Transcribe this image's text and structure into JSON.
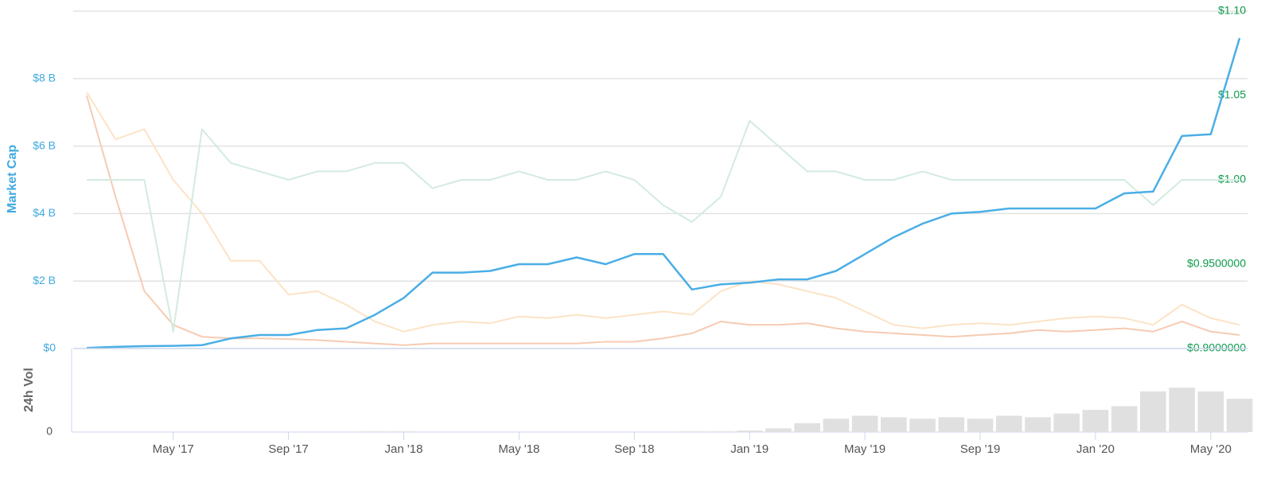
{
  "chart_data": [
    {
      "type": "line",
      "ylabel": "Market Cap",
      "x": [
        "2017-02",
        "2017-03",
        "2017-04",
        "2017-05",
        "2017-06",
        "2017-07",
        "2017-08",
        "2017-09",
        "2017-10",
        "2017-11",
        "2017-12",
        "2018-01",
        "2018-02",
        "2018-03",
        "2018-04",
        "2018-05",
        "2018-06",
        "2018-07",
        "2018-08",
        "2018-09",
        "2018-10",
        "2018-11",
        "2018-12",
        "2019-01",
        "2019-02",
        "2019-03",
        "2019-04",
        "2019-05",
        "2019-06",
        "2019-07",
        "2019-08",
        "2019-09",
        "2019-10",
        "2019-11",
        "2019-12",
        "2020-01",
        "2020-02",
        "2020-03",
        "2020-04",
        "2020-05",
        "2020-06"
      ],
      "xlim": [
        "2017-02",
        "2020-06"
      ],
      "ylim": [
        0,
        10
      ],
      "yticks": [
        {
          "value": 0,
          "label": "$0"
        },
        {
          "value": 2,
          "label": "$2 B"
        },
        {
          "value": 4,
          "label": "$4 B"
        },
        {
          "value": 6,
          "label": "$6 B"
        },
        {
          "value": 8,
          "label": "$8 B"
        }
      ],
      "y2lim": [
        0.9,
        1.1
      ],
      "y2ticks": [
        {
          "value": 0.9,
          "label": "$0.9000000"
        },
        {
          "value": 0.95,
          "label": "$0.9500000"
        },
        {
          "value": 1.0,
          "label": "$1.00"
        },
        {
          "value": 1.05,
          "label": "$1.05"
        },
        {
          "value": 1.1,
          "label": "$1.10"
        }
      ],
      "grid": true,
      "series": [
        {
          "color": "#fde3c6",
          "values": [
            7.6,
            6.2,
            6.5,
            5.0,
            4.0,
            2.6,
            2.6,
            1.6,
            1.7,
            1.3,
            0.8,
            0.5,
            0.7,
            0.8,
            0.75,
            0.95,
            0.9,
            1.0,
            0.9,
            1.0,
            1.1,
            1.0,
            1.7,
            2.0,
            1.9,
            1.7,
            1.5,
            1.1,
            0.7,
            0.6,
            0.7,
            0.75,
            0.7,
            0.8,
            0.9,
            0.95,
            0.9,
            0.7,
            1.3,
            0.9,
            0.7
          ]
        },
        {
          "color": "#f6cbb2",
          "values": [
            7.5,
            4.5,
            1.7,
            0.7,
            0.35,
            0.3,
            0.3,
            0.28,
            0.25,
            0.2,
            0.15,
            0.1,
            0.15,
            0.15,
            0.15,
            0.15,
            0.15,
            0.15,
            0.2,
            0.2,
            0.3,
            0.45,
            0.8,
            0.7,
            0.7,
            0.75,
            0.6,
            0.5,
            0.45,
            0.4,
            0.35,
            0.4,
            0.45,
            0.55,
            0.5,
            0.55,
            0.6,
            0.5,
            0.8,
            0.5,
            0.4
          ]
        },
        {
          "color": "#d3ebdf",
          "axis": "y2",
          "values": [
            1.0,
            1.0,
            1.0,
            0.91,
            1.03,
            1.01,
            1.005,
            1.0,
            1.005,
            1.005,
            1.01,
            1.01,
            0.995,
            1.0,
            1.0,
            1.005,
            1.0,
            1.0,
            1.005,
            1.0,
            0.985,
            0.975,
            0.99,
            1.035,
            1.02,
            1.005,
            1.005,
            1.0,
            1.0,
            1.005,
            1.0,
            1.0,
            1.0,
            1.0,
            1.0,
            1.0,
            1.0,
            0.985,
            1.0,
            1.0,
            1.0
          ]
        },
        {
          "color": "#4aaee6",
          "values": [
            0.02,
            0.05,
            0.07,
            0.08,
            0.1,
            0.3,
            0.4,
            0.4,
            0.55,
            0.6,
            1.0,
            1.5,
            2.25,
            2.25,
            2.3,
            2.5,
            2.5,
            2.7,
            2.5,
            2.8,
            2.8,
            1.75,
            1.9,
            1.95,
            2.05,
            2.05,
            2.3,
            2.8,
            3.3,
            3.7,
            4.0,
            4.05,
            4.15,
            4.15,
            4.15,
            4.15,
            4.6,
            4.65,
            6.3,
            6.35,
            9.2
          ]
        }
      ]
    },
    {
      "type": "bar",
      "ylabel": "24h Vol",
      "x": [
        "2017-02",
        "2017-03",
        "2017-04",
        "2017-05",
        "2017-06",
        "2017-07",
        "2017-08",
        "2017-09",
        "2017-10",
        "2017-11",
        "2017-12",
        "2018-01",
        "2018-02",
        "2018-03",
        "2018-04",
        "2018-05",
        "2018-06",
        "2018-07",
        "2018-08",
        "2018-09",
        "2018-10",
        "2018-11",
        "2018-12",
        "2019-01",
        "2019-02",
        "2019-03",
        "2019-04",
        "2019-05",
        "2019-06",
        "2019-07",
        "2019-08",
        "2019-09",
        "2019-10",
        "2019-11",
        "2019-12",
        "2020-01",
        "2020-02",
        "2020-03",
        "2020-04",
        "2020-05",
        "2020-06"
      ],
      "xlim": [
        "2017-02",
        "2020-06"
      ],
      "xticks": [
        {
          "value": "2017-05",
          "label": "May '17"
        },
        {
          "value": "2017-09",
          "label": "Sep '17"
        },
        {
          "value": "2018-01",
          "label": "Jan '18"
        },
        {
          "value": "2018-05",
          "label": "May '18"
        },
        {
          "value": "2018-09",
          "label": "Sep '18"
        },
        {
          "value": "2019-01",
          "label": "Jan '19"
        },
        {
          "value": "2019-05",
          "label": "May '19"
        },
        {
          "value": "2019-09",
          "label": "Sep '19"
        },
        {
          "value": "2020-01",
          "label": "Jan '20"
        },
        {
          "value": "2020-05",
          "label": "May '20"
        }
      ],
      "ylim": [
        0,
        100
      ],
      "yticks": [
        0
      ],
      "color": "#e0e0e0",
      "values": [
        0,
        0,
        0,
        0,
        0,
        0,
        0,
        0,
        0,
        0,
        1,
        1,
        0,
        0,
        0,
        0,
        0,
        0,
        0,
        0,
        0,
        1,
        1,
        2,
        5,
        12,
        18,
        22,
        20,
        18,
        20,
        18,
        22,
        20,
        25,
        30,
        35,
        55,
        60,
        55,
        45
      ]
    }
  ]
}
